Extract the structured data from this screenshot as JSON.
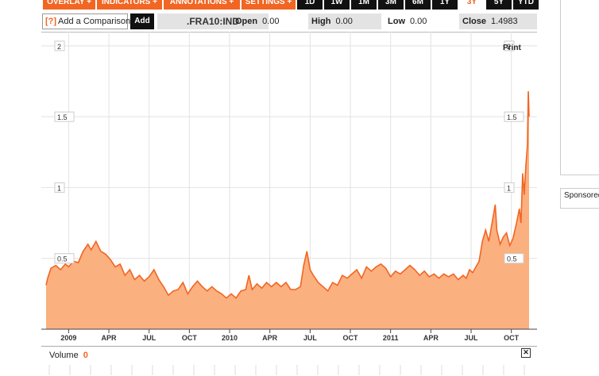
{
  "toolbar": {
    "menus": [
      "OVERLAY +",
      "INDICATORS +",
      "ANNOTATIONS +",
      "SETTINGS +"
    ],
    "ranges": [
      "1D",
      "1W",
      "1M",
      "3M",
      "6M",
      "1Y",
      "3Y",
      "5Y",
      "YTD"
    ],
    "selected_range": "3Y"
  },
  "quote": {
    "compare_icon": "[?]",
    "compare_label": "Add a Comparison",
    "add_label": "Add",
    "symbol": ".FRA10:IND",
    "open_label": "Open",
    "open_value": "0.00",
    "high_label": "High",
    "high_value": "0.00",
    "low_label": "Low",
    "low_value": "0.00",
    "close_label": "Close",
    "close_value": "1.4983"
  },
  "print_label": "Print",
  "sponsor_label": "Sponsored",
  "volume": {
    "label": "Volume",
    "value": "0"
  },
  "colors": {
    "accent": "#f26522",
    "fill": "#fbb080",
    "line": "#f26522"
  },
  "chart_data": {
    "type": "area",
    "ylim": [
      0,
      2.1
    ],
    "y_ticks": [
      "2",
      "1.5",
      "1",
      "0.5"
    ],
    "y_tick_values": [
      2,
      1.5,
      1,
      0.5
    ],
    "x_ticks": [
      "2009",
      "APR",
      "JUL",
      "OCT",
      "2010",
      "APR",
      "JUL",
      "OCT",
      "2011",
      "APR",
      "JUL",
      "OCT"
    ],
    "x_tick_values": [
      2009.0,
      2009.25,
      2009.5,
      2009.75,
      2010.0,
      2010.25,
      2010.5,
      2010.75,
      2011.0,
      2011.25,
      2011.5,
      2011.75
    ],
    "xlim": [
      2008.86,
      2011.87
    ],
    "grid": true,
    "series": [
      {
        "values": [
          [
            2008.86,
            0.31
          ],
          [
            2008.87,
            0.36
          ],
          [
            2008.89,
            0.43
          ],
          [
            2008.92,
            0.45
          ],
          [
            2008.95,
            0.42
          ],
          [
            2008.98,
            0.46
          ],
          [
            2009.0,
            0.44
          ],
          [
            2009.03,
            0.48
          ],
          [
            2009.06,
            0.47
          ],
          [
            2009.09,
            0.55
          ],
          [
            2009.12,
            0.6
          ],
          [
            2009.14,
            0.56
          ],
          [
            2009.17,
            0.62
          ],
          [
            2009.2,
            0.55
          ],
          [
            2009.23,
            0.53
          ],
          [
            2009.26,
            0.49
          ],
          [
            2009.29,
            0.44
          ],
          [
            2009.32,
            0.46
          ],
          [
            2009.35,
            0.38
          ],
          [
            2009.38,
            0.42
          ],
          [
            2009.41,
            0.35
          ],
          [
            2009.44,
            0.38
          ],
          [
            2009.47,
            0.34
          ],
          [
            2009.5,
            0.37
          ],
          [
            2009.53,
            0.42
          ],
          [
            2009.56,
            0.35
          ],
          [
            2009.59,
            0.3
          ],
          [
            2009.62,
            0.24
          ],
          [
            2009.65,
            0.27
          ],
          [
            2009.68,
            0.28
          ],
          [
            2009.71,
            0.33
          ],
          [
            2009.74,
            0.25
          ],
          [
            2009.77,
            0.3
          ],
          [
            2009.8,
            0.34
          ],
          [
            2009.83,
            0.3
          ],
          [
            2009.86,
            0.27
          ],
          [
            2009.89,
            0.3
          ],
          [
            2009.92,
            0.27
          ],
          [
            2009.95,
            0.25
          ],
          [
            2009.98,
            0.22
          ],
          [
            2010.01,
            0.25
          ],
          [
            2010.04,
            0.22
          ],
          [
            2010.07,
            0.27
          ],
          [
            2010.1,
            0.28
          ],
          [
            2010.12,
            0.38
          ],
          [
            2010.14,
            0.28
          ],
          [
            2010.17,
            0.32
          ],
          [
            2010.2,
            0.29
          ],
          [
            2010.23,
            0.33
          ],
          [
            2010.26,
            0.3
          ],
          [
            2010.29,
            0.33
          ],
          [
            2010.32,
            0.3
          ],
          [
            2010.35,
            0.33
          ],
          [
            2010.38,
            0.28
          ],
          [
            2010.41,
            0.28
          ],
          [
            2010.44,
            0.3
          ],
          [
            2010.46,
            0.45
          ],
          [
            2010.48,
            0.55
          ],
          [
            2010.5,
            0.42
          ],
          [
            2010.52,
            0.38
          ],
          [
            2010.55,
            0.33
          ],
          [
            2010.58,
            0.3
          ],
          [
            2010.61,
            0.27
          ],
          [
            2010.64,
            0.33
          ],
          [
            2010.67,
            0.31
          ],
          [
            2010.7,
            0.38
          ],
          [
            2010.73,
            0.36
          ],
          [
            2010.76,
            0.39
          ],
          [
            2010.79,
            0.42
          ],
          [
            2010.82,
            0.36
          ],
          [
            2010.85,
            0.44
          ],
          [
            2010.88,
            0.41
          ],
          [
            2010.91,
            0.44
          ],
          [
            2010.94,
            0.46
          ],
          [
            2010.97,
            0.43
          ],
          [
            2011.0,
            0.37
          ],
          [
            2011.03,
            0.41
          ],
          [
            2011.06,
            0.39
          ],
          [
            2011.09,
            0.42
          ],
          [
            2011.12,
            0.45
          ],
          [
            2011.15,
            0.42
          ],
          [
            2011.18,
            0.38
          ],
          [
            2011.21,
            0.41
          ],
          [
            2011.24,
            0.37
          ],
          [
            2011.27,
            0.39
          ],
          [
            2011.3,
            0.36
          ],
          [
            2011.33,
            0.39
          ],
          [
            2011.36,
            0.37
          ],
          [
            2011.39,
            0.39
          ],
          [
            2011.42,
            0.35
          ],
          [
            2011.45,
            0.38
          ],
          [
            2011.47,
            0.36
          ],
          [
            2011.49,
            0.42
          ],
          [
            2011.51,
            0.4
          ],
          [
            2011.53,
            0.44
          ],
          [
            2011.55,
            0.48
          ],
          [
            2011.57,
            0.62
          ],
          [
            2011.59,
            0.7
          ],
          [
            2011.61,
            0.62
          ],
          [
            2011.63,
            0.75
          ],
          [
            2011.65,
            0.88
          ],
          [
            2011.66,
            0.7
          ],
          [
            2011.68,
            0.6
          ],
          [
            2011.7,
            0.65
          ],
          [
            2011.72,
            0.68
          ],
          [
            2011.74,
            0.59
          ],
          [
            2011.76,
            0.64
          ],
          [
            2011.78,
            0.74
          ],
          [
            2011.8,
            0.85
          ],
          [
            2011.81,
            0.75
          ],
          [
            2011.82,
            1.1
          ],
          [
            2011.83,
            0.95
          ],
          [
            2011.84,
            1.15
          ],
          [
            2011.85,
            1.3
          ],
          [
            2011.855,
            1.68
          ],
          [
            2011.86,
            1.5
          ]
        ]
      }
    ]
  }
}
